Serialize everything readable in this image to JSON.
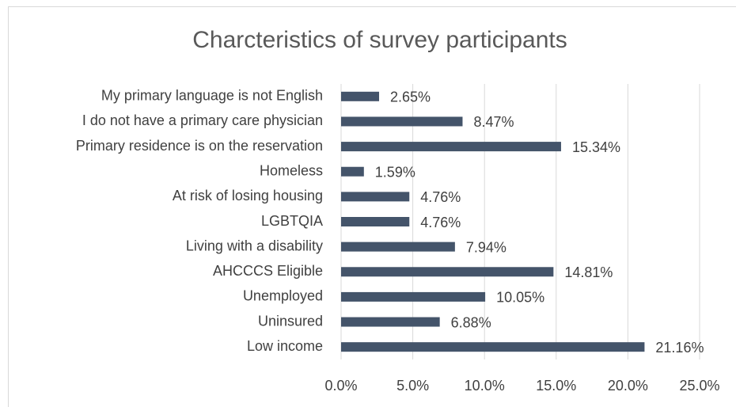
{
  "chart_data": {
    "type": "bar",
    "orientation": "horizontal",
    "title": "Charcteristics of survey participants",
    "categories": [
      "My primary language is not English",
      "I do not have a primary care physician",
      "Primary residence is on the reservation",
      "Homeless",
      "At risk of losing housing",
      "LGBTQIA",
      "Living with a disability",
      "AHCCCS Eligible",
      "Unemployed",
      "Uninsured",
      "Low income"
    ],
    "values": [
      2.65,
      8.47,
      15.34,
      1.59,
      4.76,
      4.76,
      7.94,
      14.81,
      10.05,
      6.88,
      21.16
    ],
    "value_labels": [
      "2.65%",
      "8.47%",
      "15.34%",
      "1.59%",
      "4.76%",
      "4.76%",
      "7.94%",
      "14.81%",
      "10.05%",
      "6.88%",
      "21.16%"
    ],
    "color": "#44546a",
    "xlim": [
      0,
      25
    ],
    "xticks": [
      {
        "value": 0,
        "label": "0.0%"
      },
      {
        "value": 5,
        "label": "5.0%"
      },
      {
        "value": 10,
        "label": "10.0%"
      },
      {
        "value": 15,
        "label": "15.0%"
      },
      {
        "value": 20,
        "label": "20.0%"
      },
      {
        "value": 25,
        "label": "25.0%"
      }
    ],
    "grid": true
  }
}
